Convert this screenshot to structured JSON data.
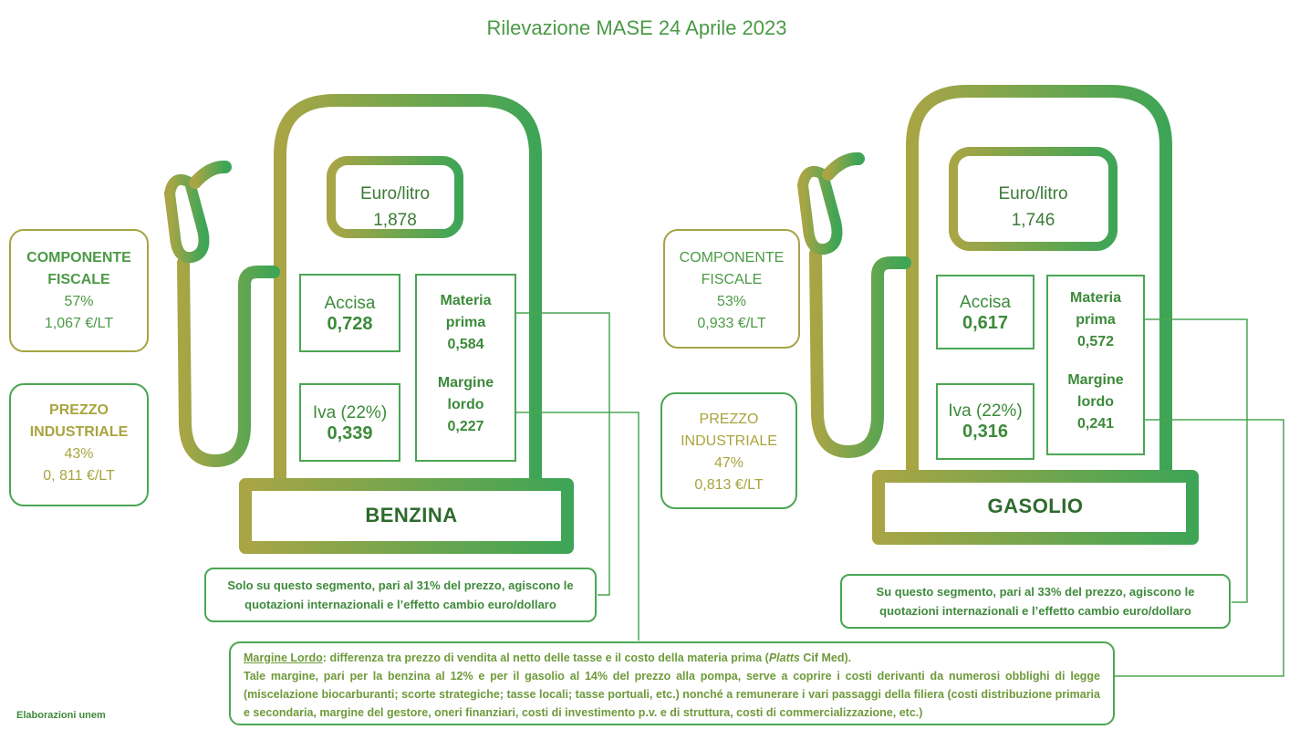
{
  "title": "Rilevazione MASE 24 Aprile 2023",
  "colors": {
    "olive": "#a5a445",
    "green": "#4aa653",
    "text": "#3f8a3c"
  },
  "benzina": {
    "name": "BENZINA",
    "price_label": "Euro/litro",
    "price": "1,878",
    "fiscale": {
      "line1": "COMPONENTE",
      "line2": "FISCALE",
      "pct": "57%",
      "value": "1,067 €/LT"
    },
    "industriale": {
      "line1": "PREZZO",
      "line2": "INDUSTRIALE",
      "pct": "43%",
      "value": "0, 811 €/LT"
    },
    "accisa": {
      "label": "Accisa",
      "value": "0,728"
    },
    "iva": {
      "label": "Iva (22%)",
      "value": "0,339"
    },
    "materia": {
      "line1": "Materia",
      "line2": "prima",
      "value": "0,584"
    },
    "margine": {
      "line1": "Margine",
      "line2": "lordo",
      "value": "0,227"
    },
    "note": {
      "line1": "Solo su questo segmento, pari al 31% del prezzo, agiscono le",
      "line2": "quotazioni internazionali e l’effetto cambio euro/dollaro"
    }
  },
  "gasolio": {
    "name": "GASOLIO",
    "price_label": "Euro/litro",
    "price": "1,746",
    "fiscale": {
      "line1": "COMPONENTE",
      "line2": "FISCALE",
      "pct": "53%",
      "value": "0,933 €/LT"
    },
    "industriale": {
      "line1": "PREZZO",
      "line2": "INDUSTRIALE",
      "pct": "47%",
      "value": "0,813 €/LT"
    },
    "accisa": {
      "label": "Accisa",
      "value": "0,617"
    },
    "iva": {
      "label": "Iva (22%)",
      "value": "0,316"
    },
    "materia": {
      "line1": "Materia",
      "line2": "prima",
      "value": "0,572"
    },
    "margine": {
      "line1": "Margine",
      "line2": "lordo",
      "value": "0,241"
    },
    "note": {
      "line1": "Su questo segmento, pari al 33% del prezzo, agiscono le",
      "line2": "quotazioni internazionali e l’effetto cambio euro/dollaro"
    }
  },
  "margine_note": {
    "term": "Margine Lordo",
    "def_a": ": differenza tra prezzo di vendita al netto delle tasse e il costo della materia prima (",
    "source": "Platts",
    "def_b": " Cif Med).",
    "body": "Tale margine, pari per la benzina al 12% e per il gasolio al 14% del prezzo alla pompa, serve a coprire i costi derivanti da numerosi obblighi di legge (miscelazione biocarburanti; scorte strategiche; tasse locali; tasse portuali, etc.) nonché a remunerare i vari passaggi della filiera (costi distribuzione primaria e secondaria, margine del gestore, oneri finanziari, costi di investimento p.v. e di struttura, costi di commercializzazione, etc.)"
  },
  "footer": "Elaborazioni unem"
}
